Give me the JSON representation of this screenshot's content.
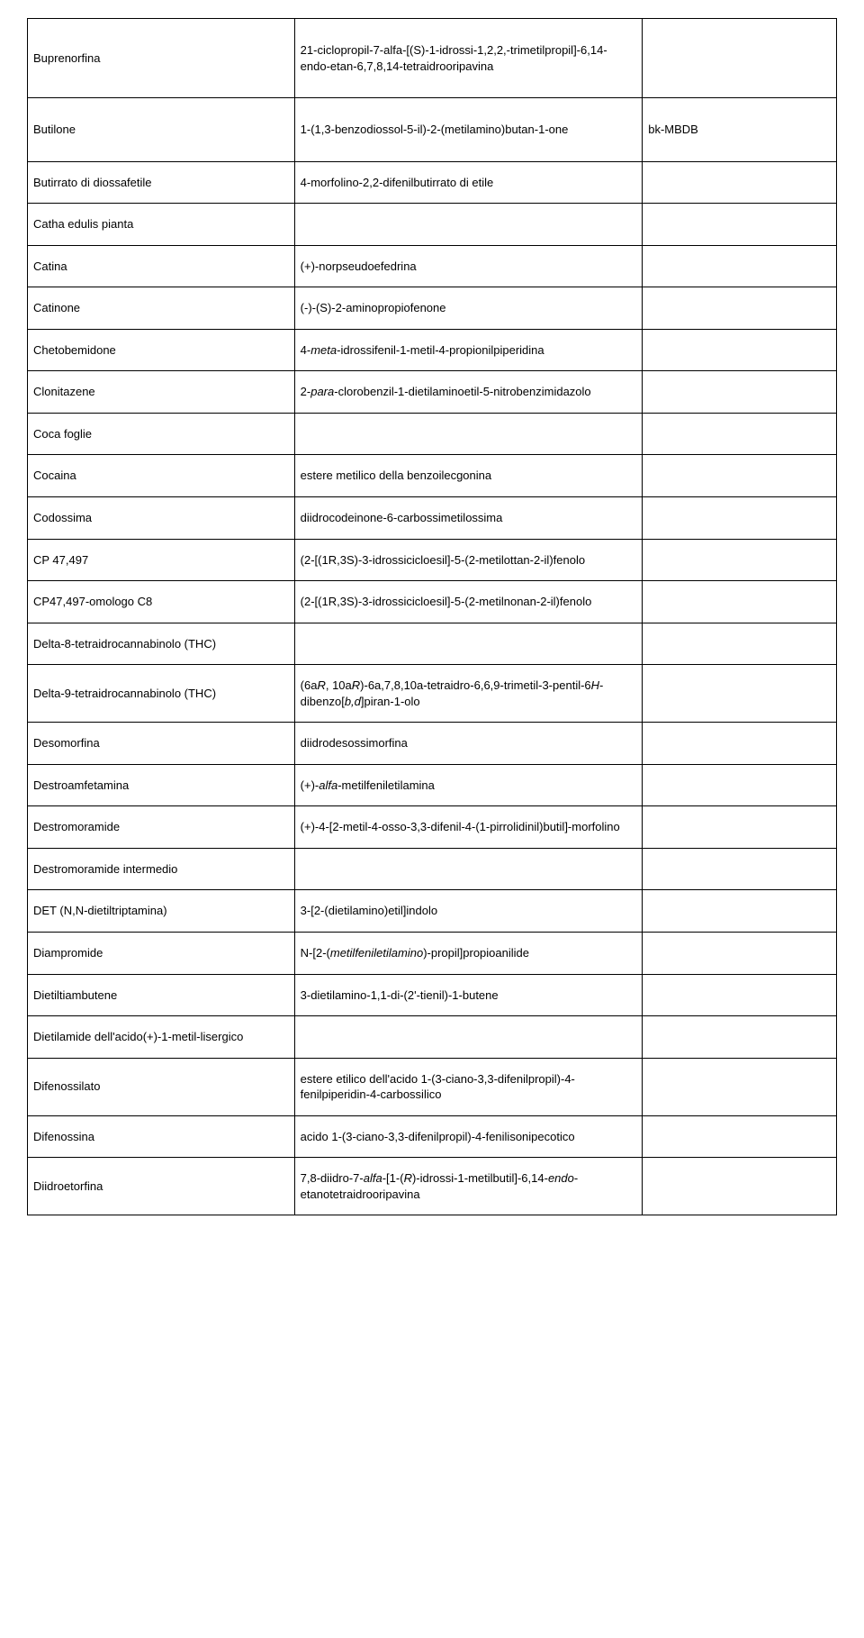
{
  "rows": [
    {
      "c1": "Buprenorfina",
      "c2": "21-ciclopropil-7-alfa-[(S)-1-idrossi-1,2,2,-trimetilpropil]-6,14-endo-etan-6,7,8,14-tetraidrooripavina",
      "c3": "",
      "tall": true
    },
    {
      "c1": "Butilone",
      "c2": "1-(1,3-benzodiossol-5-il)-2-(metilamino)butan-1-one",
      "c3": "bk-MBDB",
      "tall": true
    },
    {
      "c1": "Butirrato di diossafetile",
      "c2": "4-morfolino-2,2-difenilbutirrato di etile",
      "c3": ""
    },
    {
      "c1": "Catha edulis pianta",
      "c2": "",
      "c3": ""
    },
    {
      "c1": "Catina",
      "c2": "(+)-norpseudoefedrina",
      "c3": ""
    },
    {
      "c1": "Catinone",
      "c2": "(-)-(S)-2-aminopropiofenone",
      "c3": ""
    },
    {
      "c1": "Chetobemidone",
      "c2_html": "4-<span class=\"i\">meta</span>-idrossifenil-1-metil-4-propionilpiperidina",
      "c3": ""
    },
    {
      "c1": "Clonitazene",
      "c2_html": "2-<span class=\"i\">para</span>-clorobenzil-1-dietilaminoetil-5-nitrobenzimidazolo",
      "c3": ""
    },
    {
      "c1": "Coca foglie",
      "c2": "",
      "c3": ""
    },
    {
      "c1": "Cocaina",
      "c2": "estere metilico della benzoilecgonina",
      "c3": ""
    },
    {
      "c1": "Codossima",
      "c2": "diidrocodeinone-6-carbossimetilossima",
      "c3": ""
    },
    {
      "c1": "CP 47,497",
      "c2": "(2-[(1R,3S)-3-idrossicicloesil]-5-(2-metilottan-2-il)fenolo",
      "c3": ""
    },
    {
      "c1": "CP47,497-omologo C8",
      "c2": "(2-[(1R,3S)-3-idrossicicloesil]-5-(2-metilnonan-2-il)fenolo",
      "c3": ""
    },
    {
      "c1": "Delta-8-tetraidrocannabinolo (THC)",
      "c2": "",
      "c3": ""
    },
    {
      "c1": "Delta-9-tetraidrocannabinolo (THC)",
      "c2_html": "(6a<span class=\"i\">R</span>, 10a<span class=\"i\">R</span>)-6a,7,8,10a-tetraidro-6,6,9-trimetil-3-pentil-6<span class=\"i\">H</span>-dibenzo[<span class=\"i\">b,d</span>]piran-1-olo",
      "c3": ""
    },
    {
      "c1": "Desomorfina",
      "c2": "diidrodesossimorfina",
      "c3": ""
    },
    {
      "c1": "Destroamfetamina",
      "c2_html": "(+)-<span class=\"i\">alfa</span>-metilfeniletilamina",
      "c3": ""
    },
    {
      "c1": "Destromoramide",
      "c2": "(+)-4-[2-metil-4-osso-3,3-difenil-4-(1-pirrolidinil)butil]-morfolino",
      "c3": ""
    },
    {
      "c1": "Destromoramide intermedio",
      "c2": "",
      "c3": ""
    },
    {
      "c1": "DET (N,N-dietiltriptamina)",
      "c2": "3-[2-(dietilamino)etil]indolo",
      "c3": ""
    },
    {
      "c1": "Diampromide",
      "c2_html": "N-[2-(<span class=\"i\">metilfeniletilamino</span>)-propil]propioanilide",
      "c3": ""
    },
    {
      "c1": "Dietiltiambutene",
      "c2": "3-dietilamino-1,1-di-(2'-tienil)-1-butene",
      "c3": ""
    },
    {
      "c1": "Dietilamide dell'acido(+)-1-metil-lisergico",
      "c2": "",
      "c3": ""
    },
    {
      "c1": "Difenossilato",
      "c2": "estere etilico dell'acido 1-(3-ciano-3,3-difenilpropil)-4-fenilpiperidin-4-carbossilico",
      "c3": ""
    },
    {
      "c1": "Difenossina",
      "c2": "acido 1-(3-ciano-3,3-difenilpropil)-4-fenilisonipecotico",
      "c3": ""
    },
    {
      "c1": "Diidroetorfina",
      "c2_html": "7,8-diidro-7-<span class=\"i\">alfa</span>-[1-(<span class=\"i\">R</span>)-idrossi-1-metilbutil]-6,14-<span class=\"i\">endo</span>-etanotetraidrooripavina",
      "c3": ""
    }
  ]
}
